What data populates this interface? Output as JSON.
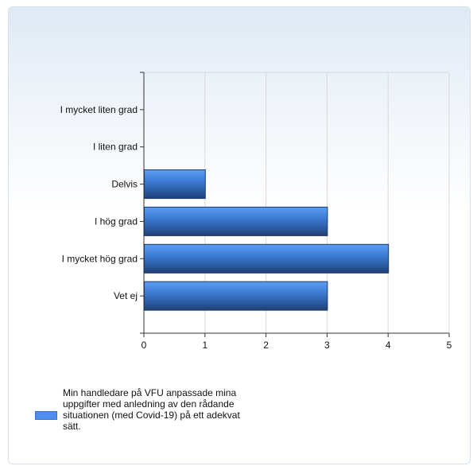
{
  "chart_data": {
    "type": "bar",
    "orientation": "horizontal",
    "categories": [
      "I mycket liten grad",
      "I liten grad",
      "Delvis",
      "I hög grad",
      "I mycket hög grad",
      "Vet ej"
    ],
    "values": [
      0,
      0,
      1,
      3,
      4,
      3
    ],
    "xlim": [
      0,
      5
    ],
    "xticks": [
      "0",
      "1",
      "2",
      "3",
      "4",
      "5"
    ],
    "grid": true,
    "series": [
      {
        "name": "Min handledare på VFU anpassade mina uppgifter med anledning av den rådande situationen (med Covid-19) på ett adekvat sätt.",
        "color": "#4d8ef0"
      }
    ],
    "legend_position": "bottom-left"
  },
  "legend": {
    "label": "Min handledare på VFU anpassade mina uppgifter med anledning av den rådande situationen (med Covid-19) på ett adekvat sätt."
  }
}
